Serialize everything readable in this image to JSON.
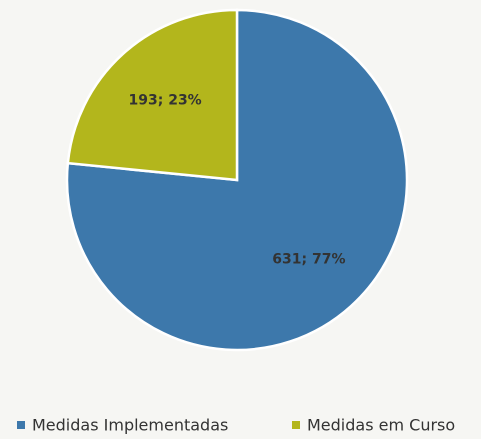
{
  "chart_data": {
    "type": "pie",
    "categories": [
      "Medidas Implementadas",
      "Medidas em Curso"
    ],
    "values": [
      631,
      193
    ],
    "value_labels": [
      "631; 77%",
      "193; 23%"
    ],
    "colors": [
      "#3d78ab",
      "#b3b61c"
    ],
    "legend": "bottom"
  }
}
